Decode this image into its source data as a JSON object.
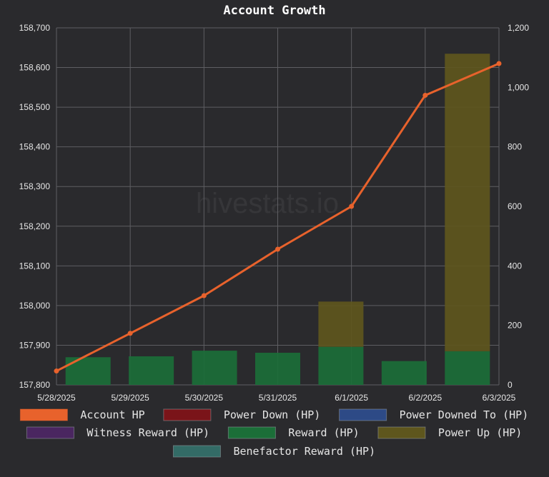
{
  "chart_data": {
    "type": "bar",
    "title": "Account Growth",
    "watermark": "hivestats.io",
    "categories": [
      "5/28/2025",
      "5/29/2025",
      "5/30/2025",
      "5/31/2025",
      "6/1/2025",
      "6/2/2025",
      "6/3/2025"
    ],
    "y_left": {
      "ylim": [
        157800,
        158700
      ],
      "ticks": [
        "157,800",
        "157,900",
        "158,000",
        "158,100",
        "158,200",
        "158,300",
        "158,400",
        "158,500",
        "158,600",
        "158,700"
      ]
    },
    "y_right": {
      "ylim": [
        0,
        1200
      ],
      "ticks": [
        "0",
        "200",
        "400",
        "600",
        "800",
        "1,000",
        "1,200"
      ]
    },
    "grid": true,
    "legend_position": "bottom",
    "series": [
      {
        "name": "Account HP",
        "kind": "line",
        "axis": "left",
        "color": "#e8622c",
        "values": [
          157835,
          157930,
          158025,
          158142,
          158250,
          158530,
          158610
        ]
      },
      {
        "name": "Power Down (HP)",
        "kind": "bar",
        "axis": "right",
        "color": "#7a1419",
        "values": [
          0,
          0,
          0,
          0,
          0,
          0,
          0
        ]
      },
      {
        "name": "Power Downed To (HP)",
        "kind": "bar",
        "axis": "right",
        "color": "#2d4a86",
        "values": [
          0,
          0,
          0,
          0,
          0,
          0,
          0
        ]
      },
      {
        "name": "Witness Reward (HP)",
        "kind": "bar",
        "axis": "right",
        "color": "#4a2660",
        "values": [
          0,
          0,
          0,
          0,
          0,
          0,
          0
        ]
      },
      {
        "name": "Reward (HP)",
        "kind": "bar",
        "axis": "right",
        "color": "#1b6e38",
        "values": [
          93,
          96,
          115,
          108,
          128,
          80,
          113
        ]
      },
      {
        "name": "Power Up (HP)",
        "kind": "bar",
        "axis": "right",
        "color": "#5e561d",
        "values": [
          0,
          0,
          0,
          0,
          152,
          0,
          1000
        ]
      },
      {
        "name": "Benefactor Reward (HP)",
        "kind": "bar",
        "axis": "right",
        "color": "#336b66",
        "values": [
          0,
          0,
          0,
          0,
          0,
          0,
          0
        ]
      }
    ]
  }
}
